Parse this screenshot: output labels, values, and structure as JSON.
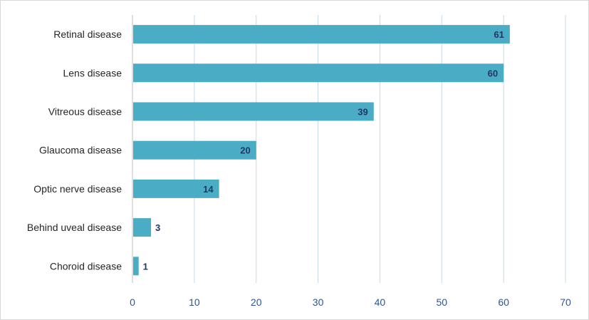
{
  "chart_data": {
    "type": "bar",
    "orientation": "horizontal",
    "categories": [
      "Retinal disease",
      "Lens disease",
      "Vitreous disease",
      "Glaucoma disease",
      "Optic nerve disease",
      "Behind uveal disease",
      "Choroid disease"
    ],
    "values": [
      61,
      60,
      39,
      20,
      14,
      3,
      1
    ],
    "xlim": [
      0,
      70
    ],
    "xticks": [
      0,
      10,
      20,
      30,
      40,
      50,
      60,
      70
    ],
    "title": "",
    "xlabel": "",
    "ylabel": "",
    "grid": true,
    "legend": "none",
    "bar_color": "#4bacc6",
    "grid_color": "#c5d9e8",
    "tick_color": "#2f5597",
    "value_label_color": "#203864"
  }
}
